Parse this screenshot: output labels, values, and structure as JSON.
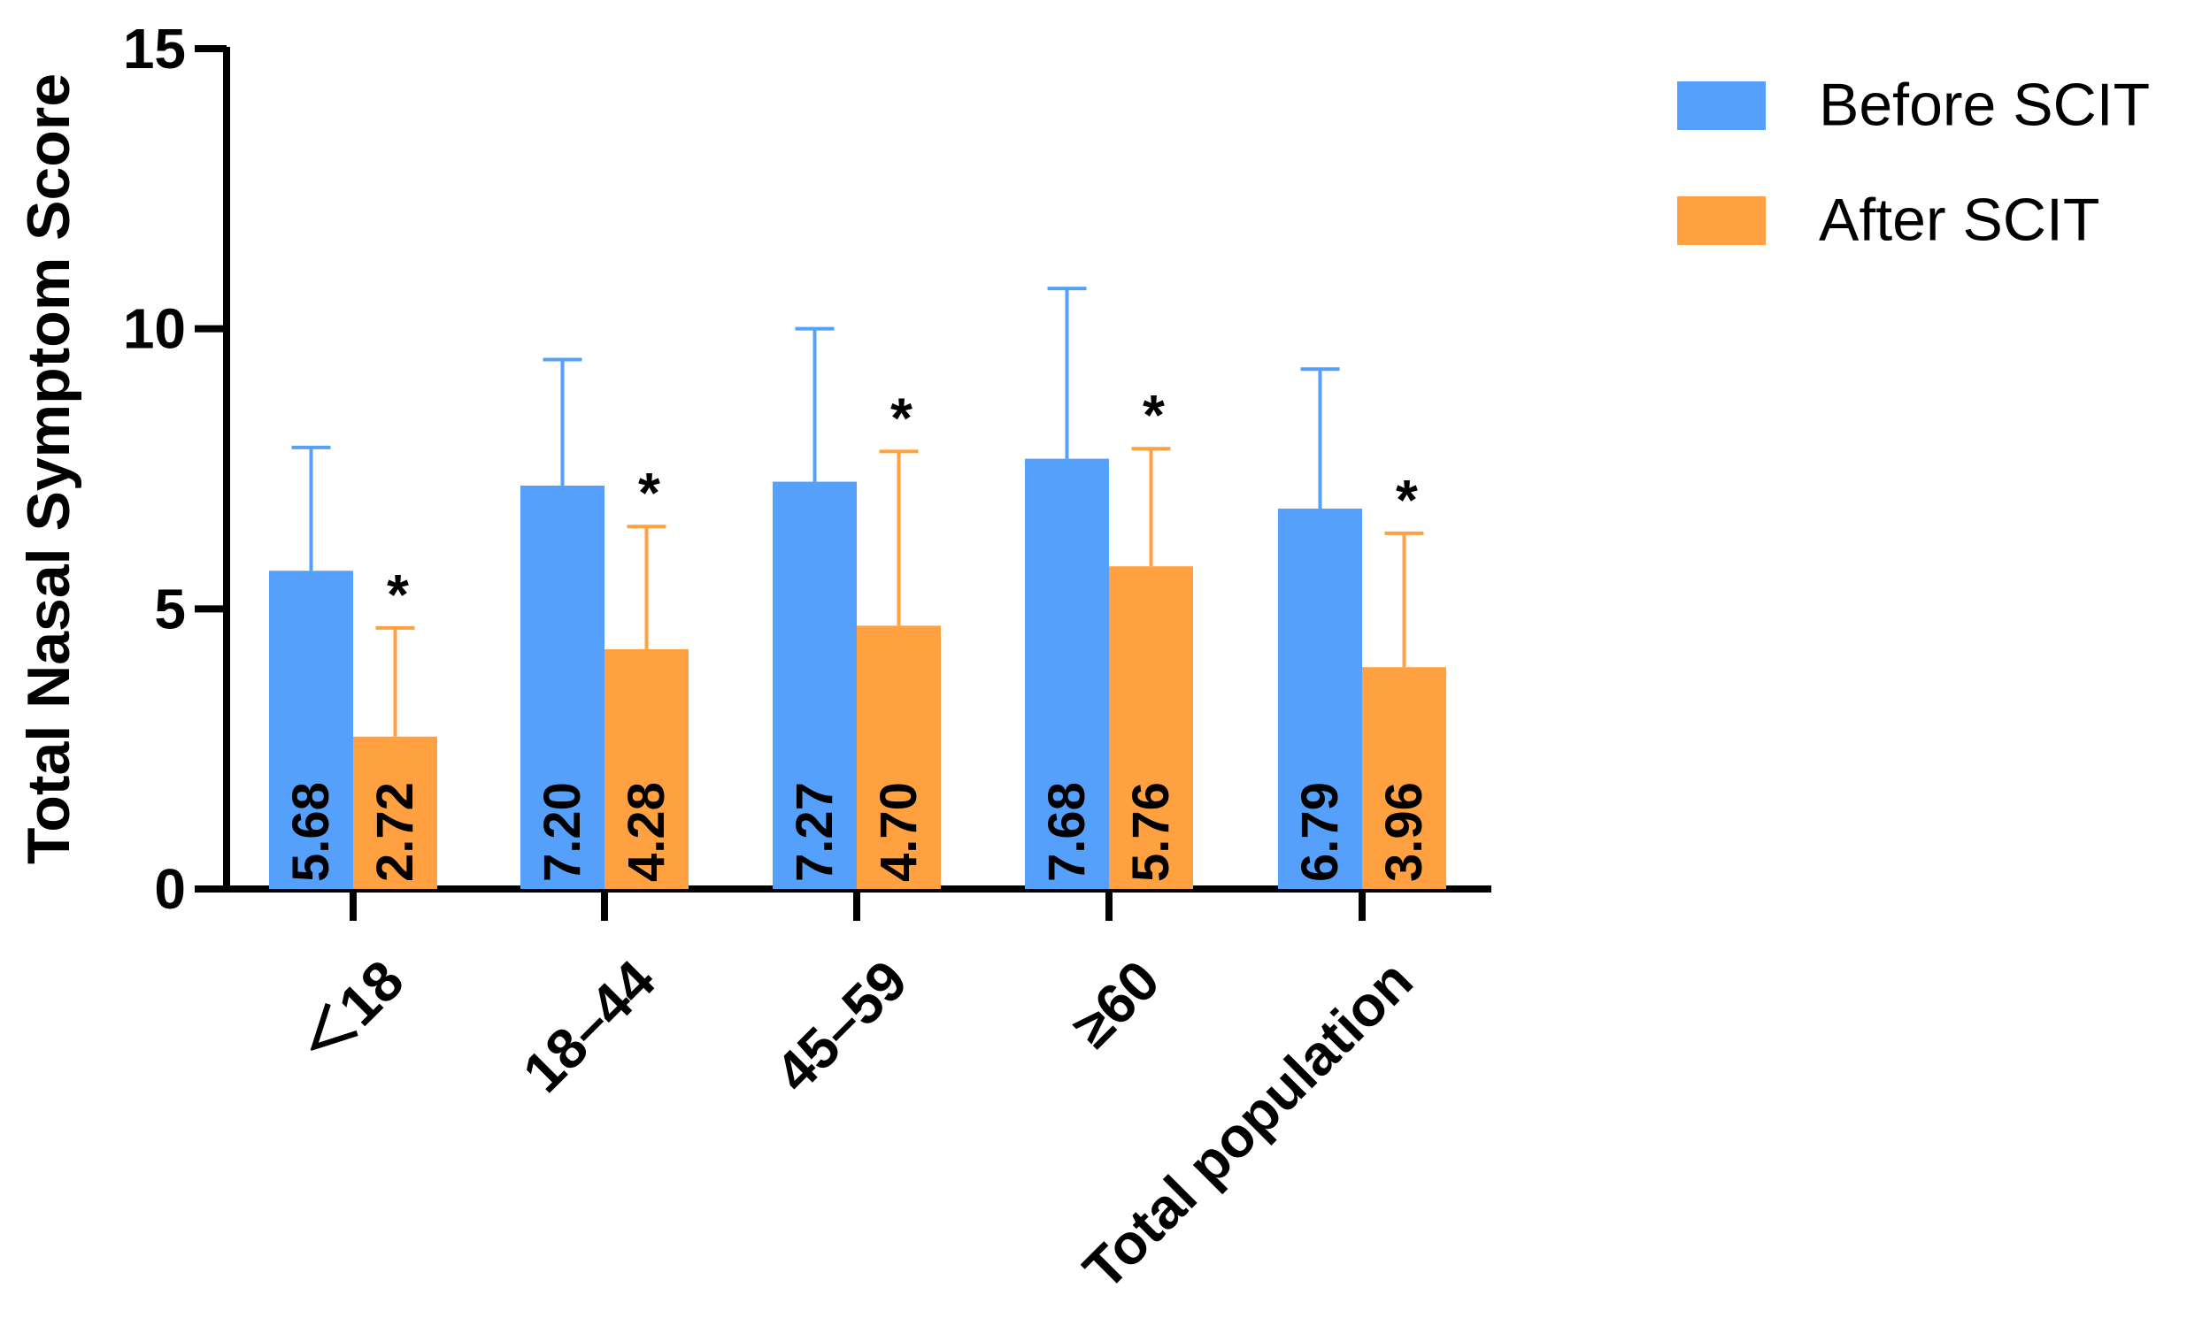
{
  "chart_data": {
    "type": "bar",
    "title": "",
    "xlabel": "",
    "ylabel": "Total Nasal Symptom Score",
    "ylim": [
      0,
      15
    ],
    "yticks": [
      "0",
      "5",
      "10",
      "15"
    ],
    "categories": [
      "＜18",
      "18–44",
      "45–59",
      "≥60",
      "Total population"
    ],
    "series": [
      {
        "name": "Before SCIT",
        "color": "#55A0FB",
        "values": [
          5.68,
          7.2,
          7.27,
          7.68,
          6.79
        ],
        "labels": [
          "5.68",
          "7.20",
          "7.27",
          "7.68",
          "6.79"
        ],
        "error_upper": [
          7.88,
          9.45,
          10.0,
          10.72,
          9.28
        ]
      },
      {
        "name": "After SCIT",
        "color": "#FFA141",
        "values": [
          2.72,
          4.28,
          4.7,
          5.76,
          3.96
        ],
        "labels": [
          "2.72",
          "4.28",
          "4.70",
          "5.76",
          "3.96"
        ],
        "error_upper": [
          4.66,
          6.47,
          7.81,
          7.86,
          6.35
        ],
        "significance": [
          "*",
          "*",
          "*",
          "*",
          "*"
        ]
      }
    ],
    "legend": {
      "position": "top-right"
    },
    "grid": false
  }
}
